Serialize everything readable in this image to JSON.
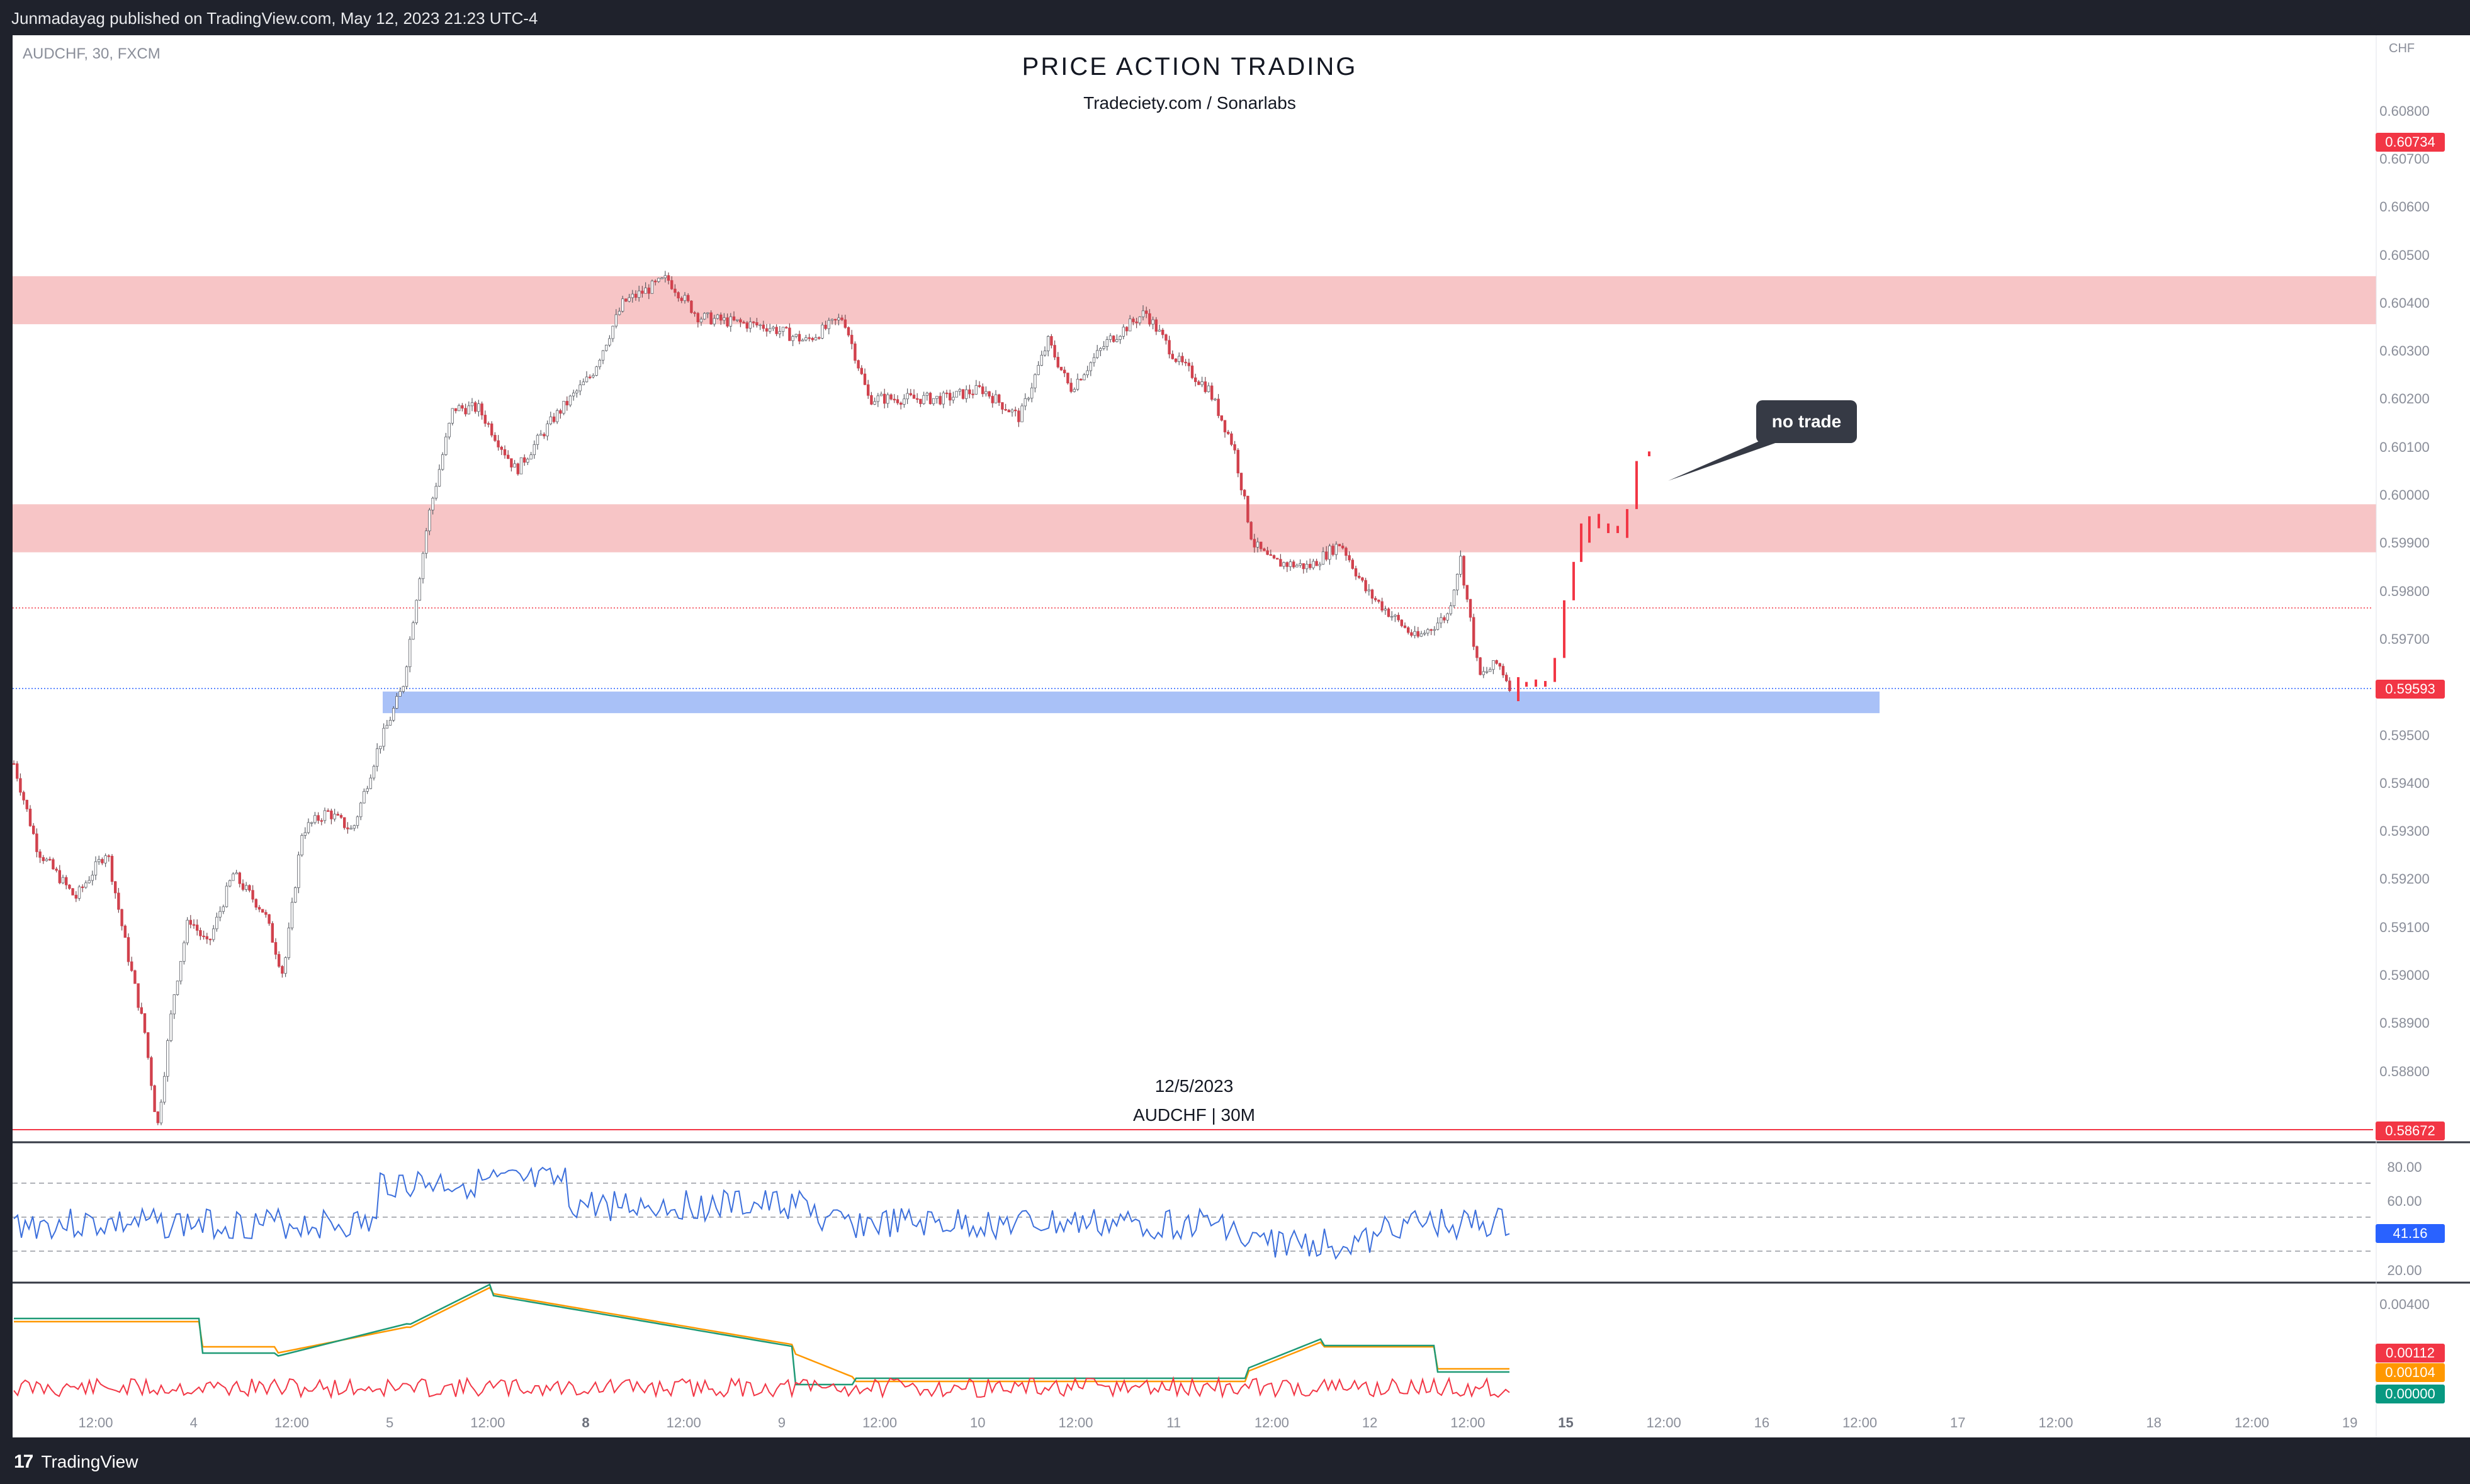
{
  "header": {
    "published": "Junmadayag published on TradingView.com, May 12, 2023 21:23 UTC-4"
  },
  "chart": {
    "symbol_line": "AUDCHF, 30, FXCM",
    "title": "PRICE  ACTION  TRADING",
    "subtitle": "Tradeciety.com / Sonarlabs",
    "watermark_date": "12/5/2023",
    "watermark_pair": "AUDCHF | 30M",
    "currency": "CHF",
    "annotation": "no trade"
  },
  "price_axis": {
    "labels": [
      "0.60800",
      "0.60700",
      "0.60600",
      "0.60500",
      "0.60400",
      "0.60300",
      "0.60200",
      "0.60100",
      "0.60000",
      "0.59900",
      "0.59800",
      "0.59700",
      "0.59500",
      "0.59400",
      "0.59300",
      "0.59200",
      "0.59100",
      "0.59000",
      "0.58900",
      "0.58800"
    ],
    "tags": {
      "high": "0.60734",
      "current": "0.59593",
      "low": "0.58672"
    }
  },
  "rsi_axis": {
    "labels": [
      "80.00",
      "60.00",
      "20.00"
    ],
    "value_tag": "41.16"
  },
  "macd_axis": {
    "labels": [
      "0.00400"
    ],
    "tags": [
      "0.00112",
      "0.00104",
      "0.00000"
    ]
  },
  "time_axis": {
    "labels": [
      {
        "t": "12:00",
        "b": false
      },
      {
        "t": "4",
        "b": false
      },
      {
        "t": "12:00",
        "b": false
      },
      {
        "t": "5",
        "b": false
      },
      {
        "t": "12:00",
        "b": false
      },
      {
        "t": "8",
        "b": true
      },
      {
        "t": "12:00",
        "b": false
      },
      {
        "t": "9",
        "b": false
      },
      {
        "t": "12:00",
        "b": false
      },
      {
        "t": "10",
        "b": false
      },
      {
        "t": "12:00",
        "b": false
      },
      {
        "t": "11",
        "b": false
      },
      {
        "t": "12:00",
        "b": false
      },
      {
        "t": "12",
        "b": false
      },
      {
        "t": "12:00",
        "b": false
      },
      {
        "t": "15",
        "b": true
      },
      {
        "t": "12:00",
        "b": false
      },
      {
        "t": "16",
        "b": false
      },
      {
        "t": "12:00",
        "b": false
      },
      {
        "t": "17",
        "b": false
      },
      {
        "t": "12:00",
        "b": false
      },
      {
        "t": "18",
        "b": false
      },
      {
        "t": "12:00",
        "b": false
      },
      {
        "t": "19",
        "b": false
      }
    ]
  },
  "zones": {
    "resistance_top": [
      0.60355,
      0.60455
    ],
    "resistance_mid": [
      0.5988,
      0.5998
    ],
    "support": [
      0.59545,
      0.5959
    ]
  },
  "footer": {
    "brand": "TradingView"
  },
  "colors": {
    "bear": "#d1414d",
    "bull_candle": "#5c5f66",
    "zone_red": "#f7c5c6",
    "zone_blue": "#a9c1f7",
    "rsi": "#3c6fdc",
    "macd_green": "#1e9a76",
    "macd_red": "#f23645",
    "macd_orange": "#ff9800"
  }
}
